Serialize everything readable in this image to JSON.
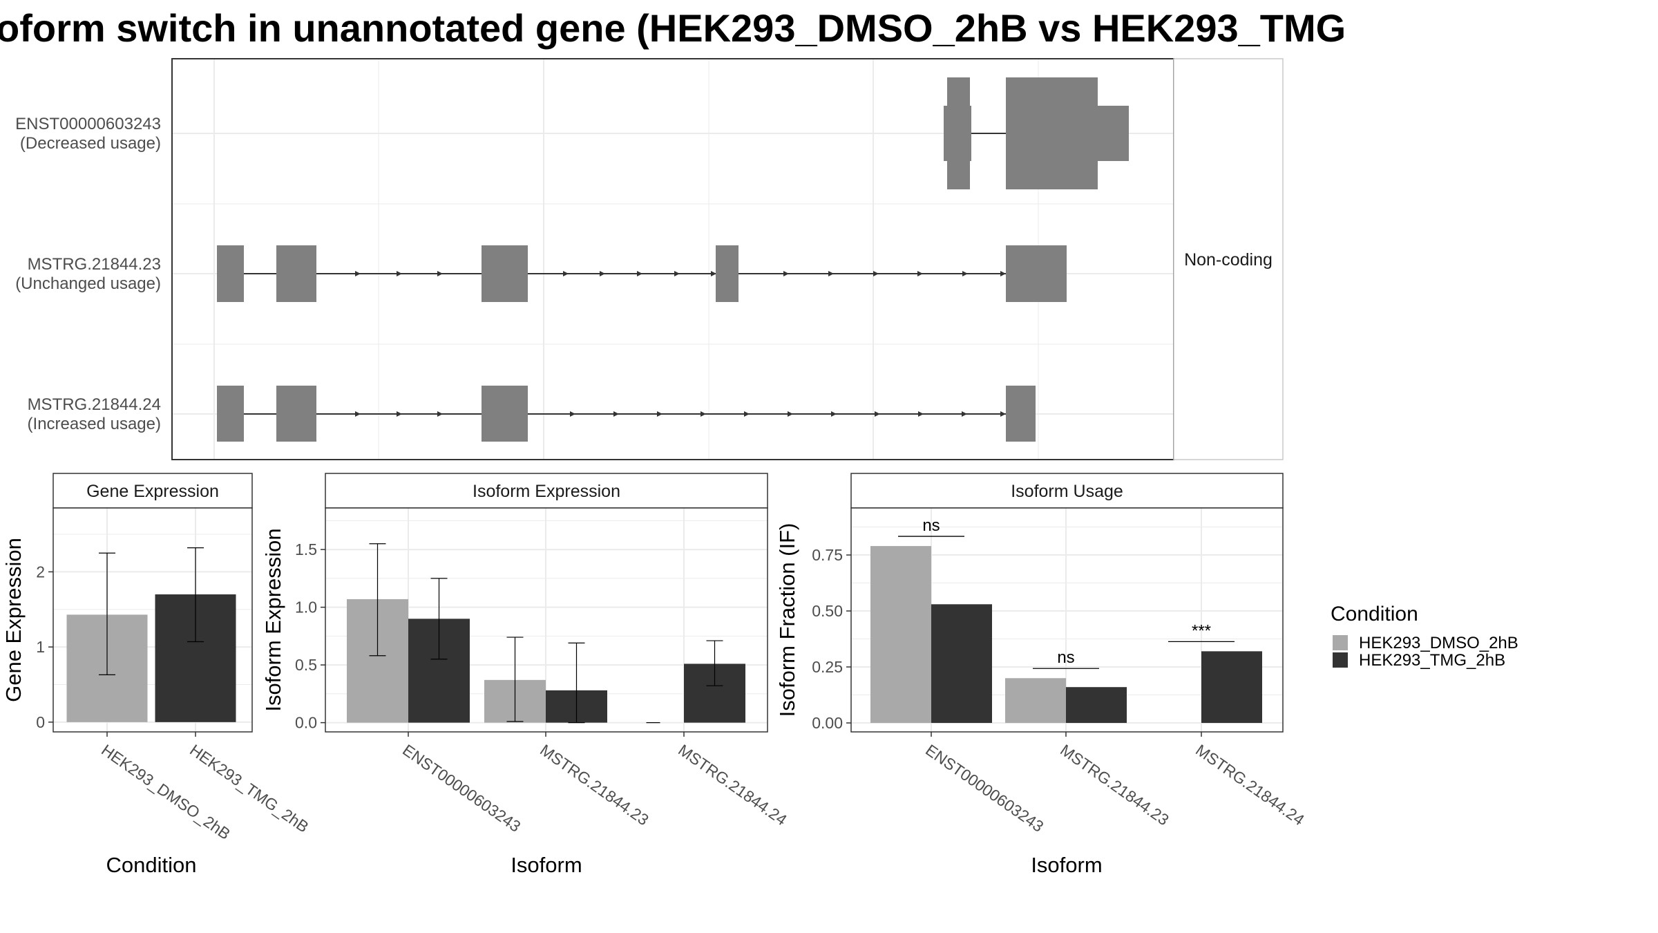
{
  "title": "oform switch in unannotated gene (HEK293_DMSO_2hB vs HEK293_TMG",
  "colors": {
    "DMSO": "#a9a9a9",
    "TMG": "#333333",
    "exon": "#808080",
    "grid": "#ebebeb",
    "panel_border": "#333333"
  },
  "transcript_panel": {
    "isoforms": [
      {
        "name": "ENST00000603243",
        "usage": "(Decreased usage)"
      },
      {
        "name": "MSTRG.21844.23",
        "usage": "(Unchanged usage)"
      },
      {
        "name": "MSTRG.21844.24",
        "usage": "(Increased usage)"
      }
    ],
    "strip_label": "Non-coding"
  },
  "legend": {
    "title": "Condition",
    "items": [
      "HEK293_DMSO_2hB",
      "HEK293_TMG_2hB"
    ]
  },
  "chart_data": [
    {
      "type": "bar",
      "title": "Gene Expression",
      "xlabel": "Condition",
      "ylabel": "Gene Expression",
      "categories": [
        "HEK293_DMSO_2hB",
        "HEK293_TMG_2hB"
      ],
      "values": [
        1.43,
        1.7
      ],
      "error_low": [
        0.63,
        1.07
      ],
      "error_high": [
        2.25,
        2.32
      ],
      "ylim": [
        -0.13,
        2.85
      ],
      "yticks": [
        "0",
        "1",
        "2"
      ]
    },
    {
      "type": "bar",
      "title": "Isoform Expression",
      "xlabel": "Isoform",
      "ylabel": "Isoform Expression",
      "categories": [
        "ENST00000603243",
        "MSTRG.21844.23",
        "MSTRG.21844.24"
      ],
      "series": [
        {
          "name": "HEK293_DMSO_2hB",
          "values": [
            1.07,
            0.37,
            0.0
          ],
          "error_low": [
            0.58,
            0.01,
            0.0
          ],
          "error_high": [
            1.55,
            0.74,
            0.0
          ]
        },
        {
          "name": "HEK293_TMG_2hB",
          "values": [
            0.9,
            0.28,
            0.51
          ],
          "error_low": [
            0.55,
            0.0,
            0.32
          ],
          "error_high": [
            1.25,
            0.69,
            0.71
          ]
        }
      ],
      "ylim": [
        -0.08,
        1.86
      ],
      "yticks": [
        "0.0",
        "0.5",
        "1.0",
        "1.5"
      ]
    },
    {
      "type": "bar",
      "title": "Isoform Usage",
      "xlabel": "Isoform",
      "ylabel": "Isoform Fraction (IF)",
      "categories": [
        "ENST00000603243",
        "MSTRG.21844.23",
        "MSTRG.21844.24"
      ],
      "series": [
        {
          "name": "HEK293_DMSO_2hB",
          "values": [
            0.79,
            0.2,
            0.0
          ]
        },
        {
          "name": "HEK293_TMG_2hB",
          "values": [
            0.53,
            0.16,
            0.32
          ]
        }
      ],
      "significance": [
        "ns",
        "ns",
        "***"
      ],
      "ylim": [
        -0.04,
        0.96
      ],
      "yticks": [
        "0.00",
        "0.25",
        "0.50",
        "0.75"
      ]
    }
  ]
}
